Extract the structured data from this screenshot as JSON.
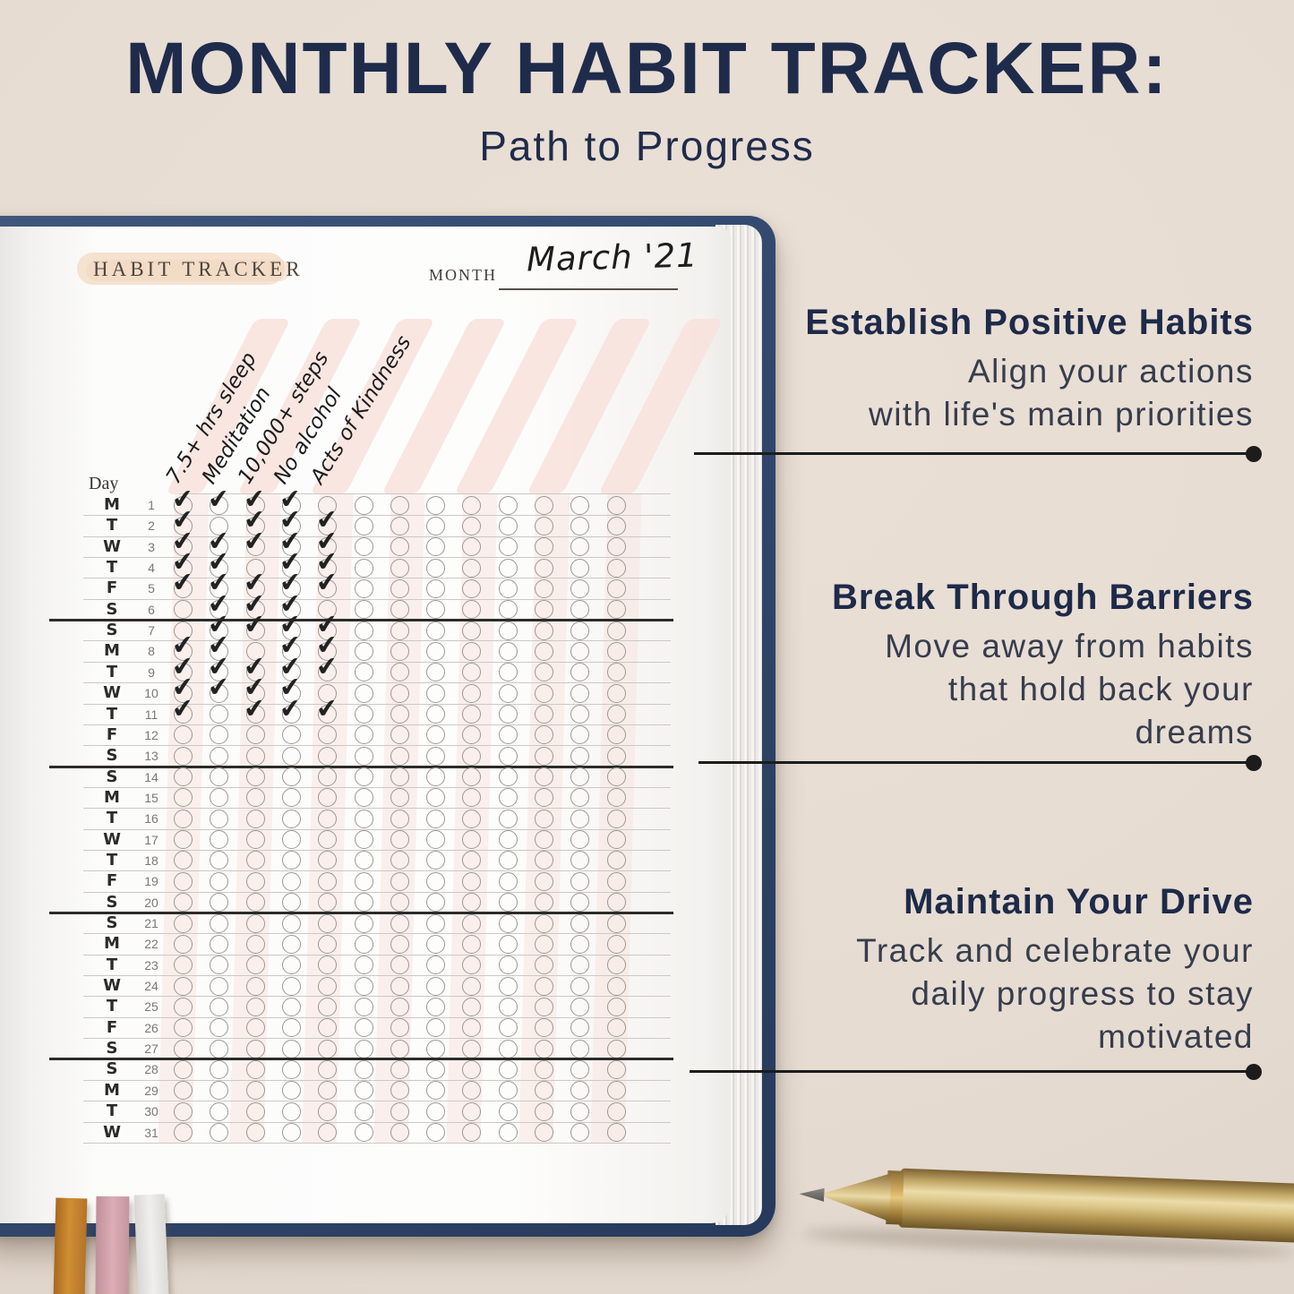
{
  "header": {
    "title": "MONTHLY HABIT TRACKER:",
    "subtitle": "Path to Progress"
  },
  "planner": {
    "page_title": "HABIT TRACKER",
    "month_label": "MONTH",
    "month_value": "March '21",
    "day_header": "Day",
    "habits": [
      "7.5+ hrs sleep",
      "Meditation",
      "10,000+ steps",
      "No alcohol",
      "Acts of Kindness"
    ],
    "total_columns": 13,
    "week_breaks_after": [
      6,
      13,
      20,
      27
    ],
    "check_symbol": "✔",
    "rows": [
      {
        "day": "M",
        "date": 1,
        "checks": [
          1,
          1,
          1,
          1,
          0
        ]
      },
      {
        "day": "T",
        "date": 2,
        "checks": [
          1,
          0,
          1,
          1,
          1
        ]
      },
      {
        "day": "W",
        "date": 3,
        "checks": [
          1,
          1,
          1,
          1,
          1
        ]
      },
      {
        "day": "T",
        "date": 4,
        "checks": [
          1,
          1,
          0,
          1,
          1
        ]
      },
      {
        "day": "F",
        "date": 5,
        "checks": [
          1,
          1,
          1,
          1,
          1
        ]
      },
      {
        "day": "S",
        "date": 6,
        "checks": [
          0,
          1,
          1,
          1,
          0
        ]
      },
      {
        "day": "S",
        "date": 7,
        "checks": [
          0,
          1,
          1,
          1,
          1
        ]
      },
      {
        "day": "M",
        "date": 8,
        "checks": [
          1,
          1,
          0,
          1,
          1
        ]
      },
      {
        "day": "T",
        "date": 9,
        "checks": [
          1,
          1,
          1,
          1,
          1
        ]
      },
      {
        "day": "W",
        "date": 10,
        "checks": [
          1,
          1,
          1,
          1,
          0
        ]
      },
      {
        "day": "T",
        "date": 11,
        "checks": [
          1,
          0,
          1,
          1,
          1
        ]
      },
      {
        "day": "F",
        "date": 12,
        "checks": [
          0,
          0,
          0,
          0,
          0
        ]
      },
      {
        "day": "S",
        "date": 13,
        "checks": [
          0,
          0,
          0,
          0,
          0
        ]
      },
      {
        "day": "S",
        "date": 14,
        "checks": [
          0,
          0,
          0,
          0,
          0
        ]
      },
      {
        "day": "M",
        "date": 15,
        "checks": [
          0,
          0,
          0,
          0,
          0
        ]
      },
      {
        "day": "T",
        "date": 16,
        "checks": [
          0,
          0,
          0,
          0,
          0
        ]
      },
      {
        "day": "W",
        "date": 17,
        "checks": [
          0,
          0,
          0,
          0,
          0
        ]
      },
      {
        "day": "T",
        "date": 18,
        "checks": [
          0,
          0,
          0,
          0,
          0
        ]
      },
      {
        "day": "F",
        "date": 19,
        "checks": [
          0,
          0,
          0,
          0,
          0
        ]
      },
      {
        "day": "S",
        "date": 20,
        "checks": [
          0,
          0,
          0,
          0,
          0
        ]
      },
      {
        "day": "S",
        "date": 21,
        "checks": [
          0,
          0,
          0,
          0,
          0
        ]
      },
      {
        "day": "M",
        "date": 22,
        "checks": [
          0,
          0,
          0,
          0,
          0
        ]
      },
      {
        "day": "T",
        "date": 23,
        "checks": [
          0,
          0,
          0,
          0,
          0
        ]
      },
      {
        "day": "W",
        "date": 24,
        "checks": [
          0,
          0,
          0,
          0,
          0
        ]
      },
      {
        "day": "T",
        "date": 25,
        "checks": [
          0,
          0,
          0,
          0,
          0
        ]
      },
      {
        "day": "F",
        "date": 26,
        "checks": [
          0,
          0,
          0,
          0,
          0
        ]
      },
      {
        "day": "S",
        "date": 27,
        "checks": [
          0,
          0,
          0,
          0,
          0
        ]
      },
      {
        "day": "S",
        "date": 28,
        "checks": [
          0,
          0,
          0,
          0,
          0
        ]
      },
      {
        "day": "M",
        "date": 29,
        "checks": [
          0,
          0,
          0,
          0,
          0
        ]
      },
      {
        "day": "T",
        "date": 30,
        "checks": [
          0,
          0,
          0,
          0,
          0
        ]
      },
      {
        "day": "W",
        "date": 31,
        "checks": [
          0,
          0,
          0,
          0,
          0
        ]
      }
    ]
  },
  "annotations": [
    {
      "title": "Establish Positive Habits",
      "body_lines": [
        "Align your actions",
        "with life's main priorities"
      ]
    },
    {
      "title": "Break Through Barriers",
      "body_lines": [
        "Move away from habits",
        "that hold back your",
        "dreams"
      ]
    },
    {
      "title": "Maintain Your Drive",
      "body_lines": [
        "Track and celebrate your",
        "daily progress to stay",
        "motivated"
      ]
    }
  ],
  "colors": {
    "background": "#e6dcd2",
    "heading_navy": "#1f2b4b",
    "cover_navy": "#33496e",
    "stripe_pink": "#f8e2dc",
    "highlight_peach": "#f4dfca",
    "ink": "#1c1c1c",
    "pen_gold": "#d3ba7e",
    "ribbon_orange": "#c9882f",
    "ribbon_pink": "#d9a9b1",
    "ribbon_white": "#ececea"
  }
}
